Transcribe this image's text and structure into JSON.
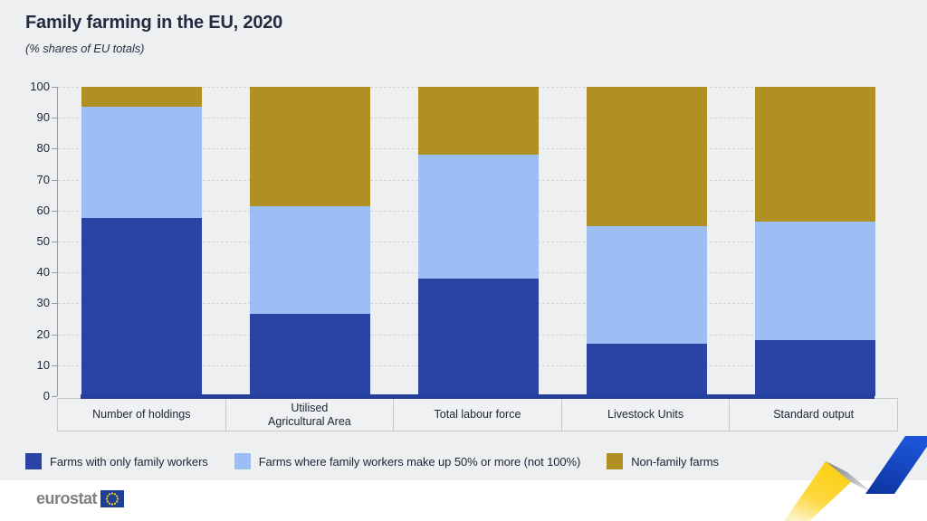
{
  "header": {
    "title": "Family farming in the EU, 2020",
    "subtitle": "(% shares of EU totals)"
  },
  "chart_data": {
    "type": "bar",
    "stacked": true,
    "title": "Family farming in the EU, 2020",
    "subtitle": "(% shares of EU totals)",
    "categories": [
      "Number of holdings",
      "Utilised\nAgricultural Area",
      "Total labour force",
      "Livestock Units",
      "Standard output"
    ],
    "series": [
      {
        "name": "Farms with only family workers",
        "color": "#2a44a5",
        "values": [
          57.5,
          26.5,
          38,
          17,
          18
        ]
      },
      {
        "name": "Farms where family workers make up 50% or more (not 100%)",
        "color": "#9bbef5",
        "values": [
          36,
          35,
          40,
          38,
          38.5
        ]
      },
      {
        "name": "Non-family farms",
        "color": "#b08f23",
        "values": [
          6.5,
          38.5,
          22,
          45,
          43.5
        ]
      }
    ],
    "ylabel": "",
    "xlabel": "",
    "ylim": [
      0,
      100
    ],
    "ytick_step": 10,
    "grid": "horizontal-dashed",
    "legend_position": "bottom"
  },
  "footer": {
    "logo_text": "eurostat",
    "logo_flag_color": "#1e3f94",
    "logo_star_color": "#ffd617"
  },
  "decoration": {
    "ribbon_yellow": "#fccf12",
    "ribbon_gray": "#9a9ca0",
    "ribbon_blue": "#1d55d8"
  }
}
